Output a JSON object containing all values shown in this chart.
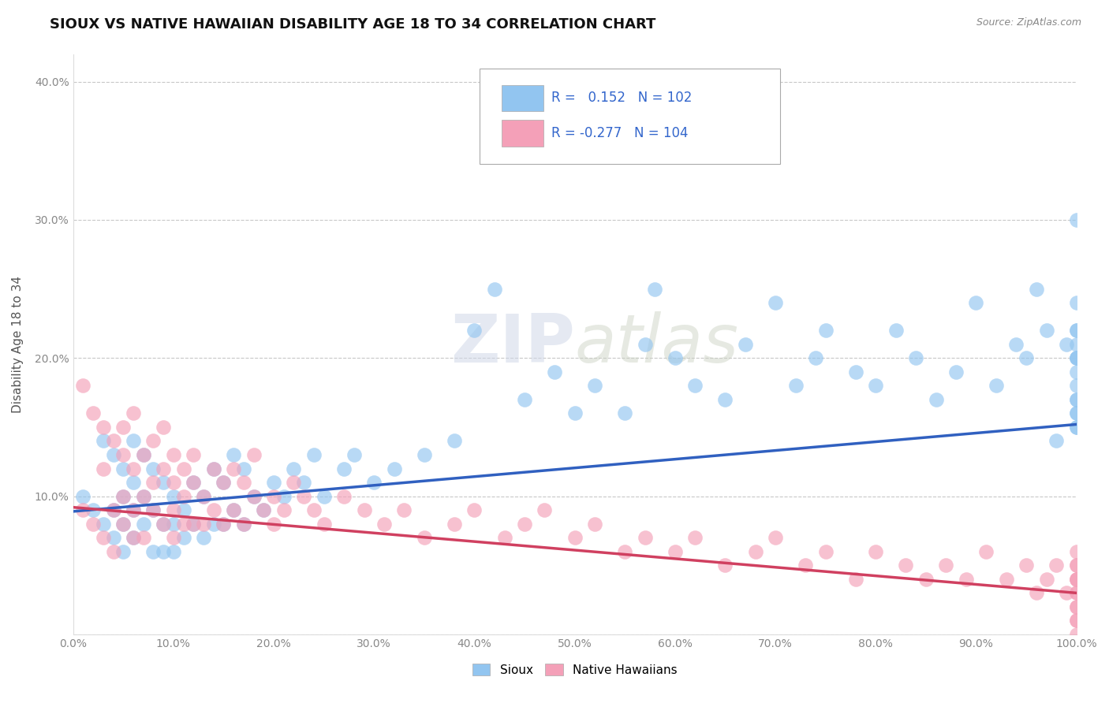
{
  "title": "SIOUX VS NATIVE HAWAIIAN DISABILITY AGE 18 TO 34 CORRELATION CHART",
  "source": "Source: ZipAtlas.com",
  "xlabel": "",
  "ylabel": "Disability Age 18 to 34",
  "xlim": [
    0.0,
    1.0
  ],
  "ylim": [
    0.0,
    0.42
  ],
  "xticks": [
    0.0,
    0.1,
    0.2,
    0.3,
    0.4,
    0.5,
    0.6,
    0.7,
    0.8,
    0.9,
    1.0
  ],
  "xticklabels": [
    "0.0%",
    "10.0%",
    "20.0%",
    "30.0%",
    "40.0%",
    "50.0%",
    "60.0%",
    "70.0%",
    "80.0%",
    "90.0%",
    "100.0%"
  ],
  "yticks": [
    0.0,
    0.1,
    0.2,
    0.3,
    0.4
  ],
  "yticklabels": [
    "",
    "10.0%",
    "20.0%",
    "30.0%",
    "40.0%"
  ],
  "sioux_color": "#92C5F0",
  "hawaiian_color": "#F4A0B8",
  "sioux_line_color": "#3060C0",
  "hawaiian_line_color": "#D04060",
  "R_sioux": 0.152,
  "N_sioux": 102,
  "R_hawaiian": -0.277,
  "N_hawaiian": 104,
  "legend_labels": [
    "Sioux",
    "Native Hawaiians"
  ],
  "watermark": "ZIPatlas",
  "background_color": "#ffffff",
  "grid_color": "#c8c8c8",
  "sioux_x": [
    0.01,
    0.02,
    0.03,
    0.03,
    0.04,
    0.04,
    0.04,
    0.05,
    0.05,
    0.05,
    0.05,
    0.06,
    0.06,
    0.06,
    0.06,
    0.07,
    0.07,
    0.07,
    0.08,
    0.08,
    0.08,
    0.09,
    0.09,
    0.09,
    0.1,
    0.1,
    0.1,
    0.11,
    0.11,
    0.12,
    0.12,
    0.13,
    0.13,
    0.14,
    0.14,
    0.15,
    0.15,
    0.16,
    0.16,
    0.17,
    0.17,
    0.18,
    0.19,
    0.2,
    0.21,
    0.22,
    0.23,
    0.24,
    0.25,
    0.27,
    0.28,
    0.3,
    0.32,
    0.35,
    0.38,
    0.4,
    0.42,
    0.45,
    0.48,
    0.5,
    0.52,
    0.55,
    0.57,
    0.58,
    0.6,
    0.62,
    0.65,
    0.67,
    0.7,
    0.72,
    0.74,
    0.75,
    0.78,
    0.8,
    0.82,
    0.84,
    0.86,
    0.88,
    0.9,
    0.92,
    0.94,
    0.95,
    0.96,
    0.97,
    0.98,
    0.99,
    1.0,
    1.0,
    1.0,
    1.0,
    1.0,
    1.0,
    1.0,
    1.0,
    1.0,
    1.0,
    1.0,
    1.0,
    1.0,
    1.0,
    1.0,
    1.0
  ],
  "sioux_y": [
    0.1,
    0.09,
    0.08,
    0.14,
    0.13,
    0.09,
    0.07,
    0.12,
    0.1,
    0.08,
    0.06,
    0.14,
    0.11,
    0.09,
    0.07,
    0.13,
    0.1,
    0.08,
    0.12,
    0.09,
    0.06,
    0.11,
    0.08,
    0.06,
    0.1,
    0.08,
    0.06,
    0.09,
    0.07,
    0.11,
    0.08,
    0.1,
    0.07,
    0.12,
    0.08,
    0.11,
    0.08,
    0.13,
    0.09,
    0.12,
    0.08,
    0.1,
    0.09,
    0.11,
    0.1,
    0.12,
    0.11,
    0.13,
    0.1,
    0.12,
    0.13,
    0.11,
    0.12,
    0.13,
    0.14,
    0.22,
    0.25,
    0.17,
    0.19,
    0.16,
    0.18,
    0.16,
    0.21,
    0.25,
    0.2,
    0.18,
    0.17,
    0.21,
    0.24,
    0.18,
    0.2,
    0.22,
    0.19,
    0.18,
    0.22,
    0.2,
    0.17,
    0.19,
    0.24,
    0.18,
    0.21,
    0.2,
    0.25,
    0.22,
    0.14,
    0.21,
    0.3,
    0.2,
    0.16,
    0.22,
    0.18,
    0.15,
    0.2,
    0.24,
    0.17,
    0.19,
    0.22,
    0.21,
    0.15,
    0.17,
    0.2,
    0.16
  ],
  "hawaiian_x": [
    0.01,
    0.01,
    0.02,
    0.02,
    0.03,
    0.03,
    0.03,
    0.04,
    0.04,
    0.04,
    0.05,
    0.05,
    0.05,
    0.05,
    0.06,
    0.06,
    0.06,
    0.06,
    0.07,
    0.07,
    0.07,
    0.08,
    0.08,
    0.08,
    0.09,
    0.09,
    0.09,
    0.1,
    0.1,
    0.1,
    0.1,
    0.11,
    0.11,
    0.11,
    0.12,
    0.12,
    0.12,
    0.13,
    0.13,
    0.14,
    0.14,
    0.15,
    0.15,
    0.16,
    0.16,
    0.17,
    0.17,
    0.18,
    0.18,
    0.19,
    0.2,
    0.2,
    0.21,
    0.22,
    0.23,
    0.24,
    0.25,
    0.27,
    0.29,
    0.31,
    0.33,
    0.35,
    0.38,
    0.4,
    0.43,
    0.45,
    0.47,
    0.5,
    0.52,
    0.55,
    0.57,
    0.6,
    0.62,
    0.65,
    0.68,
    0.7,
    0.73,
    0.75,
    0.78,
    0.8,
    0.83,
    0.85,
    0.87,
    0.89,
    0.91,
    0.93,
    0.95,
    0.96,
    0.97,
    0.98,
    0.99,
    1.0,
    1.0,
    1.0,
    1.0,
    1.0,
    1.0,
    1.0,
    1.0,
    1.0,
    1.0,
    1.0,
    1.0,
    1.0
  ],
  "hawaiian_y": [
    0.18,
    0.09,
    0.16,
    0.08,
    0.12,
    0.07,
    0.15,
    0.09,
    0.14,
    0.06,
    0.13,
    0.1,
    0.08,
    0.15,
    0.12,
    0.09,
    0.07,
    0.16,
    0.13,
    0.1,
    0.07,
    0.11,
    0.09,
    0.14,
    0.12,
    0.08,
    0.15,
    0.11,
    0.09,
    0.07,
    0.13,
    0.1,
    0.08,
    0.12,
    0.11,
    0.08,
    0.13,
    0.1,
    0.08,
    0.12,
    0.09,
    0.11,
    0.08,
    0.12,
    0.09,
    0.11,
    0.08,
    0.1,
    0.13,
    0.09,
    0.1,
    0.08,
    0.09,
    0.11,
    0.1,
    0.09,
    0.08,
    0.1,
    0.09,
    0.08,
    0.09,
    0.07,
    0.08,
    0.09,
    0.07,
    0.08,
    0.09,
    0.07,
    0.08,
    0.06,
    0.07,
    0.06,
    0.07,
    0.05,
    0.06,
    0.07,
    0.05,
    0.06,
    0.04,
    0.06,
    0.05,
    0.04,
    0.05,
    0.04,
    0.06,
    0.04,
    0.05,
    0.03,
    0.04,
    0.05,
    0.03,
    0.04,
    0.06,
    0.05,
    0.03,
    0.04,
    0.02,
    0.05,
    0.01,
    0.03,
    0.04,
    0.02,
    0.01,
    0.0
  ]
}
